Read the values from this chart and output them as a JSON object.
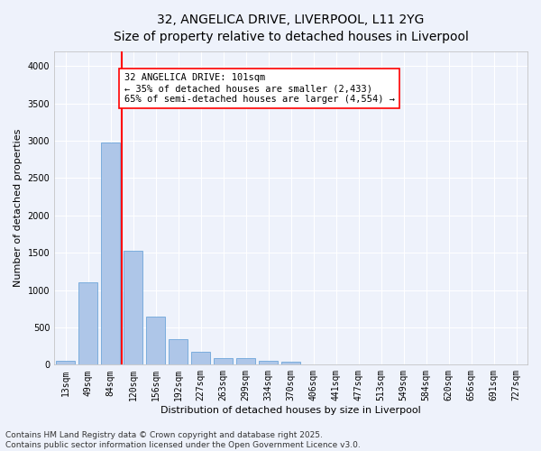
{
  "title_line1": "32, ANGELICA DRIVE, LIVERPOOL, L11 2YG",
  "title_line2": "Size of property relative to detached houses in Liverpool",
  "xlabel": "Distribution of detached houses by size in Liverpool",
  "ylabel": "Number of detached properties",
  "categories": [
    "13sqm",
    "49sqm",
    "84sqm",
    "120sqm",
    "156sqm",
    "192sqm",
    "227sqm",
    "263sqm",
    "299sqm",
    "334sqm",
    "370sqm",
    "406sqm",
    "441sqm",
    "477sqm",
    "513sqm",
    "549sqm",
    "584sqm",
    "620sqm",
    "656sqm",
    "691sqm",
    "727sqm"
  ],
  "values": [
    50,
    1100,
    2970,
    1520,
    640,
    340,
    175,
    90,
    85,
    55,
    35,
    0,
    0,
    0,
    0,
    0,
    0,
    0,
    0,
    0,
    0
  ],
  "bar_color": "#aec6e8",
  "bar_edge_color": "#5b9bd5",
  "vline_x": 2.5,
  "vline_color": "red",
  "annotation_text": "32 ANGELICA DRIVE: 101sqm\n← 35% of detached houses are smaller (2,433)\n65% of semi-detached houses are larger (4,554) →",
  "annotation_box_color": "white",
  "annotation_box_edge_color": "red",
  "ylim": [
    0,
    4200
  ],
  "yticks": [
    0,
    500,
    1000,
    1500,
    2000,
    2500,
    3000,
    3500,
    4000
  ],
  "bg_color": "#eef2fb",
  "grid_color": "#ffffff",
  "footer_line1": "Contains HM Land Registry data © Crown copyright and database right 2025.",
  "footer_line2": "Contains public sector information licensed under the Open Government Licence v3.0.",
  "title_fontsize": 10,
  "subtitle_fontsize": 9,
  "axis_label_fontsize": 8,
  "tick_fontsize": 7,
  "annotation_fontsize": 7.5,
  "footer_fontsize": 6.5
}
